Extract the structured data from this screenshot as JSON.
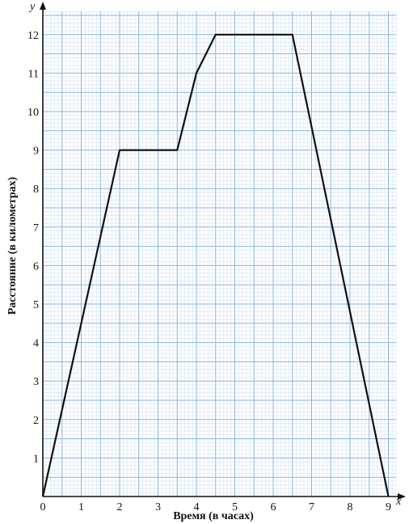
{
  "chart_data": {
    "type": "line",
    "x_axis_letter": "x",
    "y_axis_letter": "y",
    "xlabel": "Время (в часах)",
    "ylabel": "Расстояние (в километрах)",
    "xlim": [
      0,
      9
    ],
    "ylim": [
      0,
      12
    ],
    "x_ticks": [
      "0",
      "1",
      "2",
      "3",
      "4",
      "5",
      "6",
      "7",
      "8",
      "9"
    ],
    "y_ticks": [
      "1",
      "2",
      "3",
      "4",
      "5",
      "6",
      "7",
      "8",
      "9",
      "10",
      "11",
      "12"
    ],
    "grid": true,
    "grid_minor_step": 0.1,
    "points": [
      {
        "x": 0,
        "y": 0
      },
      {
        "x": 2,
        "y": 9
      },
      {
        "x": 3.5,
        "y": 9
      },
      {
        "x": 4,
        "y": 11
      },
      {
        "x": 4.5,
        "y": 12
      },
      {
        "x": 6.5,
        "y": 12
      },
      {
        "x": 9,
        "y": 0
      }
    ],
    "colors": {
      "grid_major": "#8fb3dd",
      "grid_minor": "#d3e2f4",
      "line": "#111111",
      "axis": "#111111"
    }
  }
}
